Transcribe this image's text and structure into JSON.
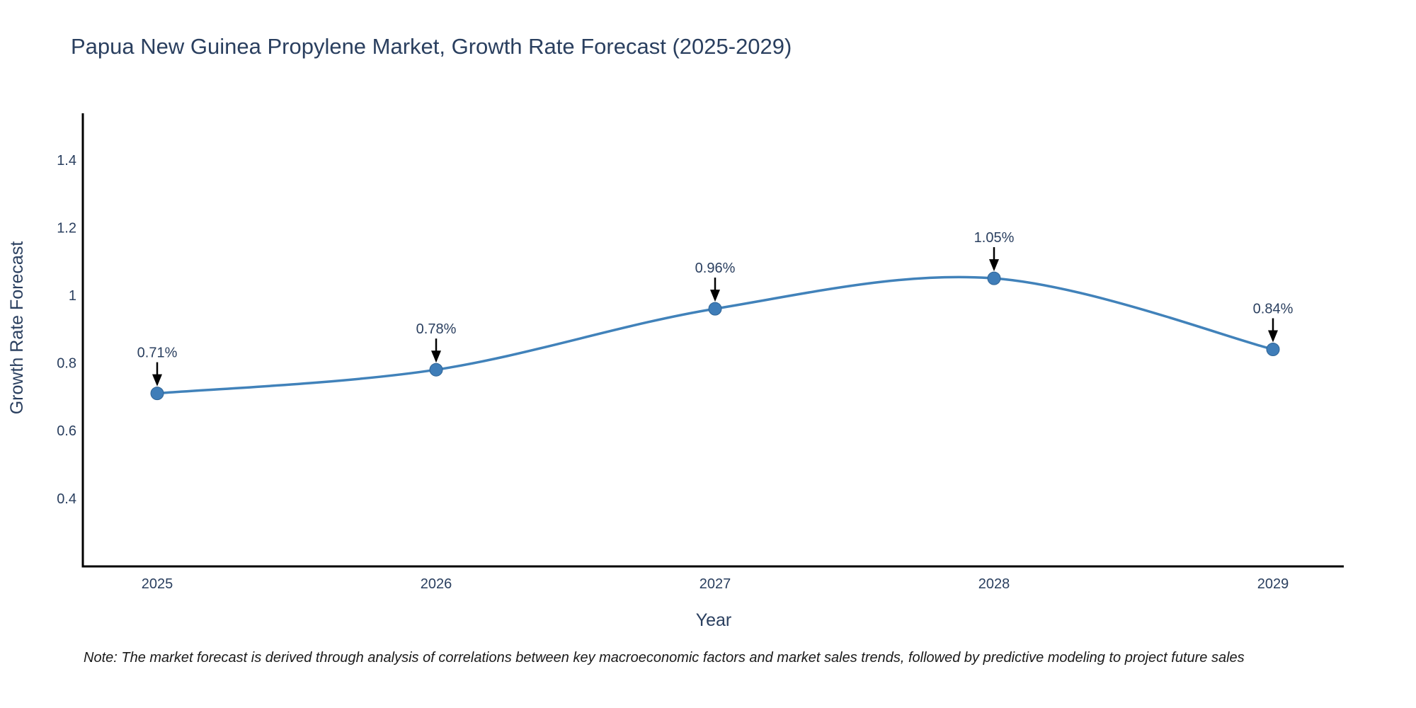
{
  "page": {
    "note": "Note: The market forecast is derived through analysis of correlations between key macroeconomic factors and market sales trends, followed by predictive modeling to project future sales"
  },
  "chart_data": {
    "type": "line",
    "title": "Papua New Guinea Propylene Market, Growth Rate Forecast (2025-2029)",
    "xlabel": "Year",
    "ylabel": "Growth Rate Forecast",
    "x": [
      2025,
      2026,
      2027,
      2028,
      2029
    ],
    "values": [
      0.71,
      0.78,
      0.96,
      1.05,
      0.84
    ],
    "point_labels": [
      "0.71%",
      "0.78%",
      "0.96%",
      "1.05%",
      "0.84%"
    ],
    "y_ticks": [
      0.4,
      0.6,
      0.8,
      1.0,
      1.2,
      1.4
    ],
    "ylim": [
      0.2,
      1.54
    ],
    "grid": false,
    "legend": false,
    "line_shape": "spline",
    "annotation_style": "value label with down arrow onto each marker",
    "colors": {
      "line": "#4182ba",
      "marker": "#3f7db8",
      "marker_edge": "#2f6496",
      "axis": "#000000",
      "text": "#2a3f5f",
      "annotation_arrow": "#000000",
      "note_text": "#1a1a1a",
      "background": "#ffffff"
    }
  }
}
